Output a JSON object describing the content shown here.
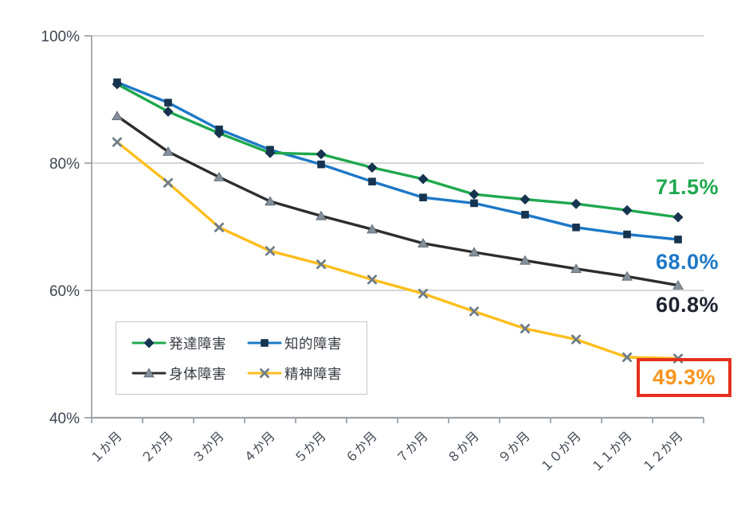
{
  "chart_data": {
    "type": "line",
    "title": "",
    "categories": [
      "１か月",
      "２か月",
      "３か月",
      "４か月",
      "５か月",
      "６か月",
      "７か月",
      "８か月",
      "９か月",
      "１０か月",
      "１１か月",
      "１２か月"
    ],
    "xlabel": "",
    "ylabel": "",
    "y_axis": {
      "ticks": [
        "100%",
        "80%",
        "60%",
        "40%"
      ],
      "tick_values": [
        100,
        80,
        60,
        40
      ],
      "min": 40,
      "max": 100,
      "unit": "%"
    },
    "grid": "horizontal",
    "legend_position": "inside-bottom-left",
    "style": {
      "grid_color": "#C7C9CB",
      "axis_color": "#9EA3A8",
      "tick_label_color": "#3E4652",
      "legend_border_color": "#C4C8CC",
      "background": "#FFFFFF"
    },
    "series": [
      {
        "name": "発達障害",
        "marker": "diamond-icon",
        "line_color": "#1FA84E",
        "marker_color": "#16344F",
        "label_color": "#1FA84E",
        "end_label": "71.5%",
        "values": [
          92.4,
          88.1,
          84.7,
          81.6,
          81.4,
          79.3,
          77.5,
          75.1,
          74.3,
          73.6,
          72.6,
          71.5
        ]
      },
      {
        "name": "知的障害",
        "marker": "square-icon",
        "line_color": "#1D78C7",
        "marker_color": "#16344F",
        "label_color": "#1D78C7",
        "end_label": "68.0%",
        "values": [
          92.7,
          89.5,
          85.3,
          82.1,
          79.8,
          77.1,
          74.6,
          73.7,
          71.9,
          69.9,
          68.8,
          68.0
        ]
      },
      {
        "name": "身体障害",
        "marker": "triangle-icon",
        "line_color": "#2D2D2D",
        "marker_color": "#858F99",
        "label_color": "#1E2430",
        "end_label": "60.8%",
        "values": [
          87.4,
          81.8,
          77.8,
          74.0,
          71.7,
          69.6,
          67.4,
          66.0,
          64.7,
          63.4,
          62.2,
          60.8
        ]
      },
      {
        "name": "精神障害",
        "marker": "x-icon",
        "line_color": "#FFBE1E",
        "marker_color": "#6F7D89",
        "label_color": "#F7941D",
        "end_label": "49.3%",
        "highlight_box_color": "#E5301D",
        "values": [
          83.3,
          76.9,
          69.9,
          66.2,
          64.1,
          61.7,
          59.5,
          56.7,
          54.0,
          52.3,
          49.5,
          49.3
        ]
      }
    ]
  }
}
